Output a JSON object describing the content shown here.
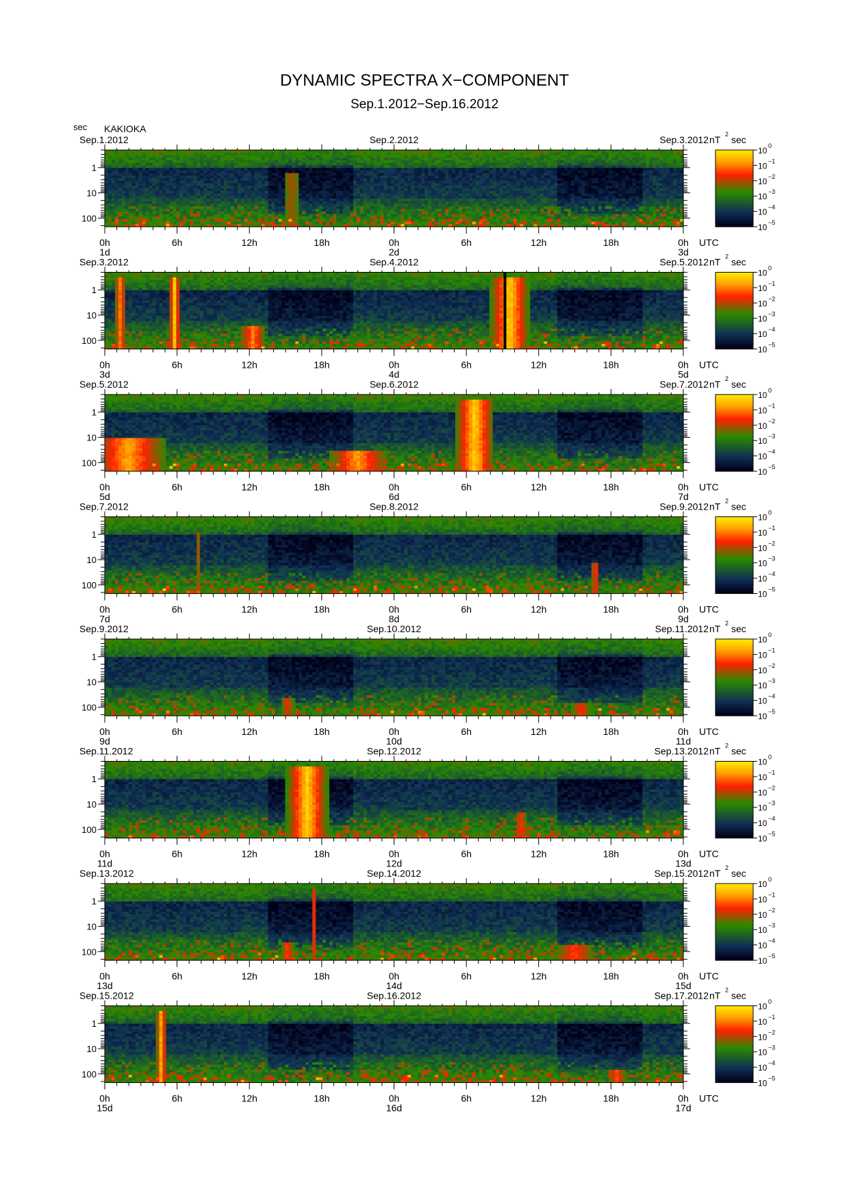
{
  "page": {
    "title": "DYNAMIC SPECTRA X−COMPONENT",
    "subtitle": "Sep.1.2012−Sep.16.2012",
    "y_unit": "sec",
    "station": "KAKIOKA"
  },
  "chart_data": {
    "type": "heatmap",
    "title": "DYNAMIC SPECTRA X−COMPONENT",
    "subtitle": "Sep.1.2012−Sep.16.2012",
    "station": "KAKIOKA",
    "xlabel": "UTC",
    "ylabel": "sec",
    "y_scale": "log",
    "y_ticks": [
      "1",
      "10",
      "100"
    ],
    "x_ticks": [
      "0h",
      "6h",
      "12h",
      "18h",
      "0h",
      "6h",
      "12h",
      "18h",
      "0h"
    ],
    "x_unit_label": "UTC",
    "colorbar": {
      "label_base": "nT",
      "label_exp": "2",
      "label_suffix": "sec",
      "scale": "log",
      "ticks": [
        {
          "base": "10",
          "exp": "0"
        },
        {
          "base": "10",
          "exp": "−1"
        },
        {
          "base": "10",
          "exp": "−2"
        },
        {
          "base": "10",
          "exp": "−3"
        },
        {
          "base": "10",
          "exp": "−4"
        },
        {
          "base": "10",
          "exp": "−5"
        }
      ],
      "colors": [
        "#ffe800",
        "#ffa000",
        "#ff2000",
        "#2a8a00",
        "#0f2f55",
        "#000018"
      ]
    },
    "panels": [
      {
        "dates": [
          "Sep.1.2012",
          "Sep.2.2012",
          "Sep.3.2012"
        ],
        "days": [
          "1d",
          "2d",
          "3d"
        ],
        "events": [
          {
            "center_hours": 15.5,
            "width_hours": 1.2,
            "top_sec": 2,
            "strength": 0.3
          }
        ]
      },
      {
        "dates": [
          "Sep.3.2012",
          "Sep.4.2012",
          "Sep.5.2012"
        ],
        "days": [
          "3d",
          "4d",
          "5d"
        ],
        "events": [
          {
            "center_hours": 1.3,
            "width_hours": 0.9,
            "top_sec": 0.35,
            "strength": 0.7
          },
          {
            "center_hours": 5.8,
            "width_hours": 0.9,
            "top_sec": 0.35,
            "strength": 0.95
          },
          {
            "center_hours": 12.3,
            "width_hours": 2,
            "top_sec": 30,
            "strength": 0.75
          },
          {
            "center_hours": 33.6,
            "width_hours": 3.2,
            "top_sec": 0.35,
            "strength": 1
          }
        ],
        "data_gap_hours": 33.2
      },
      {
        "dates": [
          "Sep.5.2012",
          "Sep.6.2012",
          "Sep.7.2012"
        ],
        "days": [
          "5d",
          "6d",
          "7d"
        ],
        "events": [
          {
            "center_hours": 2,
            "width_hours": 6,
            "top_sec": 12,
            "strength": 0.85
          },
          {
            "center_hours": 21,
            "width_hours": 5,
            "top_sec": 40,
            "strength": 0.8
          },
          {
            "center_hours": 30.7,
            "width_hours": 3.2,
            "top_sec": 0.35,
            "strength": 1
          }
        ]
      },
      {
        "dates": [
          "Sep.7.2012",
          "Sep.8.2012",
          "Sep.9.2012"
        ],
        "days": [
          "7d",
          "8d",
          "9d"
        ],
        "events": [
          {
            "center_hours": 7.7,
            "width_hours": 0.3,
            "top_sec": 1,
            "strength": 0.35
          },
          {
            "center_hours": 40.7,
            "width_hours": 0.7,
            "top_sec": 15,
            "strength": 0.55
          }
        ]
      },
      {
        "dates": [
          "Sep.9.2012",
          "Sep.10.2012",
          "Sep.11.2012"
        ],
        "days": [
          "9d",
          "10d",
          "11d"
        ],
        "events": [
          {
            "center_hours": 15.2,
            "width_hours": 1,
            "top_sec": 50,
            "strength": 0.45
          },
          {
            "center_hours": 39.5,
            "width_hours": 1.5,
            "top_sec": 80,
            "strength": 0.5
          }
        ]
      },
      {
        "dates": [
          "Sep.11.2012",
          "Sep.12.2012",
          "Sep.13.2012"
        ],
        "days": [
          "11d",
          "12d",
          "13d"
        ],
        "events": [
          {
            "center_hours": 16.8,
            "width_hours": 3.4,
            "top_sec": 0.35,
            "strength": 1
          },
          {
            "center_hours": 34.5,
            "width_hours": 0.8,
            "top_sec": 25,
            "strength": 0.55
          }
        ]
      },
      {
        "dates": [
          "Sep.13.2012",
          "Sep.14.2012",
          "Sep.15.2012"
        ],
        "days": [
          "13d",
          "14d",
          "15d"
        ],
        "events": [
          {
            "center_hours": 17.3,
            "width_hours": 0.3,
            "top_sec": 0.4,
            "strength": 0.7
          },
          {
            "center_hours": 15.2,
            "width_hours": 1,
            "top_sec": 50,
            "strength": 0.6
          },
          {
            "center_hours": 39,
            "width_hours": 3,
            "top_sec": 60,
            "strength": 0.55
          }
        ]
      },
      {
        "dates": [
          "Sep.15.2012",
          "Sep.16.2012",
          "Sep.17.2012"
        ],
        "days": [
          "15d",
          "16d",
          "17d"
        ],
        "events": [
          {
            "center_hours": 4.7,
            "width_hours": 0.8,
            "top_sec": 0.35,
            "strength": 0.9
          },
          {
            "center_hours": 42.5,
            "width_hours": 1.5,
            "top_sec": 80,
            "strength": 0.55
          }
        ]
      }
    ]
  }
}
